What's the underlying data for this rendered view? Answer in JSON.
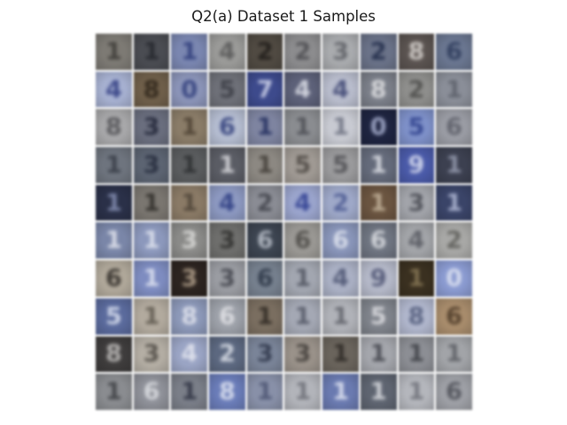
{
  "figure": {
    "title": "Q2(a) Dataset 1 Samples"
  },
  "grid": {
    "rows": 10,
    "cols": 10,
    "tiles": [
      {
        "bg": "#7d7a74",
        "fg": "#3a3834",
        "glyph": "1"
      },
      {
        "bg": "#4a4c52",
        "fg": "#23252b",
        "glyph": "1"
      },
      {
        "bg": "#7a86b0",
        "fg": "#2c3a78",
        "glyph": "1"
      },
      {
        "bg": "#9a9a98",
        "fg": "#555555",
        "glyph": "4"
      },
      {
        "bg": "#504a42",
        "fg": "#1e1b18",
        "glyph": "2"
      },
      {
        "bg": "#8c8c8e",
        "fg": "#4a4a4e",
        "glyph": "2"
      },
      {
        "bg": "#a9abae",
        "fg": "#5a5c62",
        "glyph": "3"
      },
      {
        "bg": "#6a7288",
        "fg": "#1f2a48",
        "glyph": "2"
      },
      {
        "bg": "#5a5350",
        "fg": "#e0dcd8",
        "glyph": "8"
      },
      {
        "bg": "#6a7690",
        "fg": "#2c3a5a",
        "glyph": "6"
      },
      {
        "bg": "#a6b0d0",
        "fg": "#2e3a80",
        "glyph": "4"
      },
      {
        "bg": "#6f5f4a",
        "fg": "#2c2318",
        "glyph": "8"
      },
      {
        "bg": "#8b94b8",
        "fg": "#2e3c7a",
        "glyph": "0"
      },
      {
        "bg": "#6e7078",
        "fg": "#3a3c44",
        "glyph": "5"
      },
      {
        "bg": "#3d4a8c",
        "fg": "#d8dcf0",
        "glyph": "7"
      },
      {
        "bg": "#5c6078",
        "fg": "#e4e6ee",
        "glyph": "4"
      },
      {
        "bg": "#b8bccc",
        "fg": "#3a4270",
        "glyph": "4"
      },
      {
        "bg": "#7a7e88",
        "fg": "#e8e8ea",
        "glyph": "8"
      },
      {
        "bg": "#8e8e8c",
        "fg": "#4a4a48",
        "glyph": "2"
      },
      {
        "bg": "#8a8e98",
        "fg": "#5a5e68",
        "glyph": "1"
      },
      {
        "bg": "#a8a8aa",
        "fg": "#4e4e52",
        "glyph": "8"
      },
      {
        "bg": "#6a6e7e",
        "fg": "#1e2234",
        "glyph": "3"
      },
      {
        "bg": "#8a7c68",
        "fg": "#4a3e30",
        "glyph": "1"
      },
      {
        "bg": "#b4bcd0",
        "fg": "#2c3a78",
        "glyph": "6"
      },
      {
        "bg": "#7e84a0",
        "fg": "#1e2a5c",
        "glyph": "1"
      },
      {
        "bg": "#8a8c90",
        "fg": "#4a4c52",
        "glyph": "1"
      },
      {
        "bg": "#c8cad2",
        "fg": "#6a6e7e",
        "glyph": "1"
      },
      {
        "bg": "#1e2440",
        "fg": "#b0b8d8",
        "glyph": "0"
      },
      {
        "bg": "#7e90c8",
        "fg": "#2c3e8a",
        "glyph": "5"
      },
      {
        "bg": "#9a9ca4",
        "fg": "#5a5c66",
        "glyph": "6"
      },
      {
        "bg": "#6e747e",
        "fg": "#353a44",
        "glyph": "1"
      },
      {
        "bg": "#5c6472",
        "fg": "#23293a",
        "glyph": "3"
      },
      {
        "bg": "#5a5c5e",
        "fg": "#2a2c2e",
        "glyph": "1"
      },
      {
        "bg": "#5a5c64",
        "fg": "#e0e0e4",
        "glyph": "1"
      },
      {
        "bg": "#8c8882",
        "fg": "#3e3a34",
        "glyph": "1"
      },
      {
        "bg": "#a09a94",
        "fg": "#4a4540",
        "glyph": "5"
      },
      {
        "bg": "#9a9a9c",
        "fg": "#4c4c50",
        "glyph": "5"
      },
      {
        "bg": "#646a7a",
        "fg": "#e4e6ec",
        "glyph": "1"
      },
      {
        "bg": "#4a5aa8",
        "fg": "#e0e4f4",
        "glyph": "9"
      },
      {
        "bg": "#3c4050",
        "fg": "#9aa0b4",
        "glyph": "1"
      },
      {
        "bg": "#2a3048",
        "fg": "#8a94b8",
        "glyph": "1"
      },
      {
        "bg": "#7a7670",
        "fg": "#2a2824",
        "glyph": "1"
      },
      {
        "bg": "#8a7a66",
        "fg": "#4c4236",
        "glyph": "1"
      },
      {
        "bg": "#8c98c0",
        "fg": "#2a3a80",
        "glyph": "4"
      },
      {
        "bg": "#8a8c94",
        "fg": "#3e4048",
        "glyph": "2"
      },
      {
        "bg": "#9aa4cc",
        "fg": "#2c3c90",
        "glyph": "4"
      },
      {
        "bg": "#9ea8c8",
        "fg": "#4a5890",
        "glyph": "2"
      },
      {
        "bg": "#6a5440",
        "fg": "#c8b8a0",
        "glyph": "1"
      },
      {
        "bg": "#a2a4aa",
        "fg": "#44464e",
        "glyph": "3"
      },
      {
        "bg": "#3a4468",
        "fg": "#b8c0dc",
        "glyph": "1"
      },
      {
        "bg": "#7a86a8",
        "fg": "#e8eaf2",
        "glyph": "1"
      },
      {
        "bg": "#8c98bc",
        "fg": "#e4e8f2",
        "glyph": "1"
      },
      {
        "bg": "#8a8a88",
        "fg": "#e0e0de",
        "glyph": "3"
      },
      {
        "bg": "#6e6e6c",
        "fg": "#2c2c2a",
        "glyph": "3"
      },
      {
        "bg": "#3c4450",
        "fg": "#c0c6d0",
        "glyph": "6"
      },
      {
        "bg": "#9a9894",
        "fg": "#4a4844",
        "glyph": "6"
      },
      {
        "bg": "#8894b8",
        "fg": "#e4e8f2",
        "glyph": "6"
      },
      {
        "bg": "#6e7480",
        "fg": "#e2e4e8",
        "glyph": "6"
      },
      {
        "bg": "#a2a4a8",
        "fg": "#565860",
        "glyph": "4"
      },
      {
        "bg": "#a8a8a6",
        "fg": "#5a5a56",
        "glyph": "2"
      },
      {
        "bg": "#b0a89a",
        "fg": "#2c2824",
        "glyph": "6"
      },
      {
        "bg": "#7e8cc0",
        "fg": "#e4e8f4",
        "glyph": "1"
      },
      {
        "bg": "#2c2420",
        "fg": "#b8a690",
        "glyph": "3"
      },
      {
        "bg": "#9a9ca2",
        "fg": "#3e4048",
        "glyph": "3"
      },
      {
        "bg": "#76808e",
        "fg": "#2a3444",
        "glyph": "6"
      },
      {
        "bg": "#a2a6b0",
        "fg": "#4c505c",
        "glyph": "1"
      },
      {
        "bg": "#aab0c4",
        "fg": "#4a5270",
        "glyph": "4"
      },
      {
        "bg": "#b4b8c8",
        "fg": "#4a5070",
        "glyph": "9"
      },
      {
        "bg": "#3a3020",
        "fg": "#8a7a58",
        "glyph": "1"
      },
      {
        "bg": "#8a9ad0",
        "fg": "#e4e8f4",
        "glyph": "0"
      },
      {
        "bg": "#5a6a9c",
        "fg": "#e0e6f4",
        "glyph": "5"
      },
      {
        "bg": "#b2aa9e",
        "fg": "#5a544a",
        "glyph": "1"
      },
      {
        "bg": "#8c98b8",
        "fg": "#e8eaf2",
        "glyph": "8"
      },
      {
        "bg": "#9ca0a8",
        "fg": "#e8e8ec",
        "glyph": "6"
      },
      {
        "bg": "#7a6e60",
        "fg": "#2c2620",
        "glyph": "1"
      },
      {
        "bg": "#a4a8b4",
        "fg": "#505462",
        "glyph": "1"
      },
      {
        "bg": "#b0b2b8",
        "fg": "#5c5e66",
        "glyph": "1"
      },
      {
        "bg": "#7e828a",
        "fg": "#e4e4e8",
        "glyph": "5"
      },
      {
        "bg": "#b0b6cc",
        "fg": "#4e5878",
        "glyph": "8"
      },
      {
        "bg": "#a88c6c",
        "fg": "#4a3826",
        "glyph": "6"
      },
      {
        "bg": "#3e3c3c",
        "fg": "#c8c6c4",
        "glyph": "8"
      },
      {
        "bg": "#b4aea4",
        "fg": "#4a4640",
        "glyph": "3"
      },
      {
        "bg": "#9aa4c4",
        "fg": "#e8eaf2",
        "glyph": "4"
      },
      {
        "bg": "#5c6880",
        "fg": "#e0e4ec",
        "glyph": "2"
      },
      {
        "bg": "#7a8498",
        "fg": "#2a3246",
        "glyph": "3"
      },
      {
        "bg": "#9a928a",
        "fg": "#3e3a36",
        "glyph": "3"
      },
      {
        "bg": "#6a645c",
        "fg": "#2a2622",
        "glyph": "1"
      },
      {
        "bg": "#a4a6ac",
        "fg": "#3e4048",
        "glyph": "1"
      },
      {
        "bg": "#8c8e94",
        "fg": "#3a3c42",
        "glyph": "1"
      },
      {
        "bg": "#a2a4a8",
        "fg": "#585a60",
        "glyph": "1"
      },
      {
        "bg": "#8a8c90",
        "fg": "#3a3c40",
        "glyph": "1"
      },
      {
        "bg": "#8e9098",
        "fg": "#e2e4e8",
        "glyph": "6"
      },
      {
        "bg": "#7a7e88",
        "fg": "#2c3040",
        "glyph": "1"
      },
      {
        "bg": "#6a7cb8",
        "fg": "#e8ecf6",
        "glyph": "8"
      },
      {
        "bg": "#8890a8",
        "fg": "#4a5270",
        "glyph": "1"
      },
      {
        "bg": "#b2b4ba",
        "fg": "#6a6c74",
        "glyph": "1"
      },
      {
        "bg": "#6a7ab0",
        "fg": "#e6eaf6",
        "glyph": "1"
      },
      {
        "bg": "#5e6470",
        "fg": "#e0e2e6",
        "glyph": "1"
      },
      {
        "bg": "#b4b6bc",
        "fg": "#6c6e76",
        "glyph": "1"
      },
      {
        "bg": "#9ea0a6",
        "fg": "#4a4c54",
        "glyph": "6"
      }
    ]
  }
}
